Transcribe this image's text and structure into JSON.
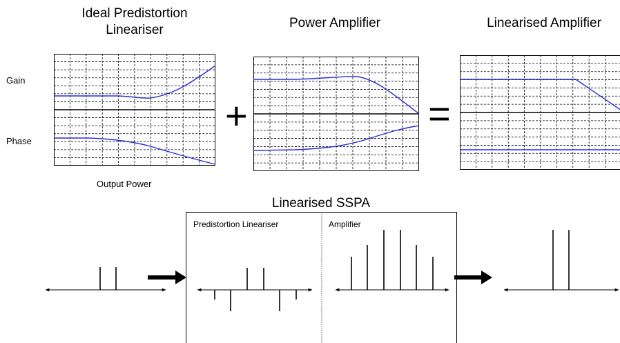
{
  "titles": {
    "predistortion": "Ideal Predistortion\nLineariser",
    "power_amplifier": "Power Amplifier",
    "linearised_amplifier": "Linearised Amplifier",
    "sspa": "Linearised SSPA"
  },
  "labels": {
    "gain": "Gain",
    "phase": "Phase",
    "output_power": "Output Power",
    "predistortion_lineariser": "Predistortion Lineariser",
    "amplifier": "Amplifier"
  },
  "symbols": {
    "plus": "+",
    "equals": "="
  },
  "colors": {
    "curve": "#2b2bd6",
    "grid": "#000000"
  },
  "icons": {
    "arrow": "right-arrow-icon"
  }
}
